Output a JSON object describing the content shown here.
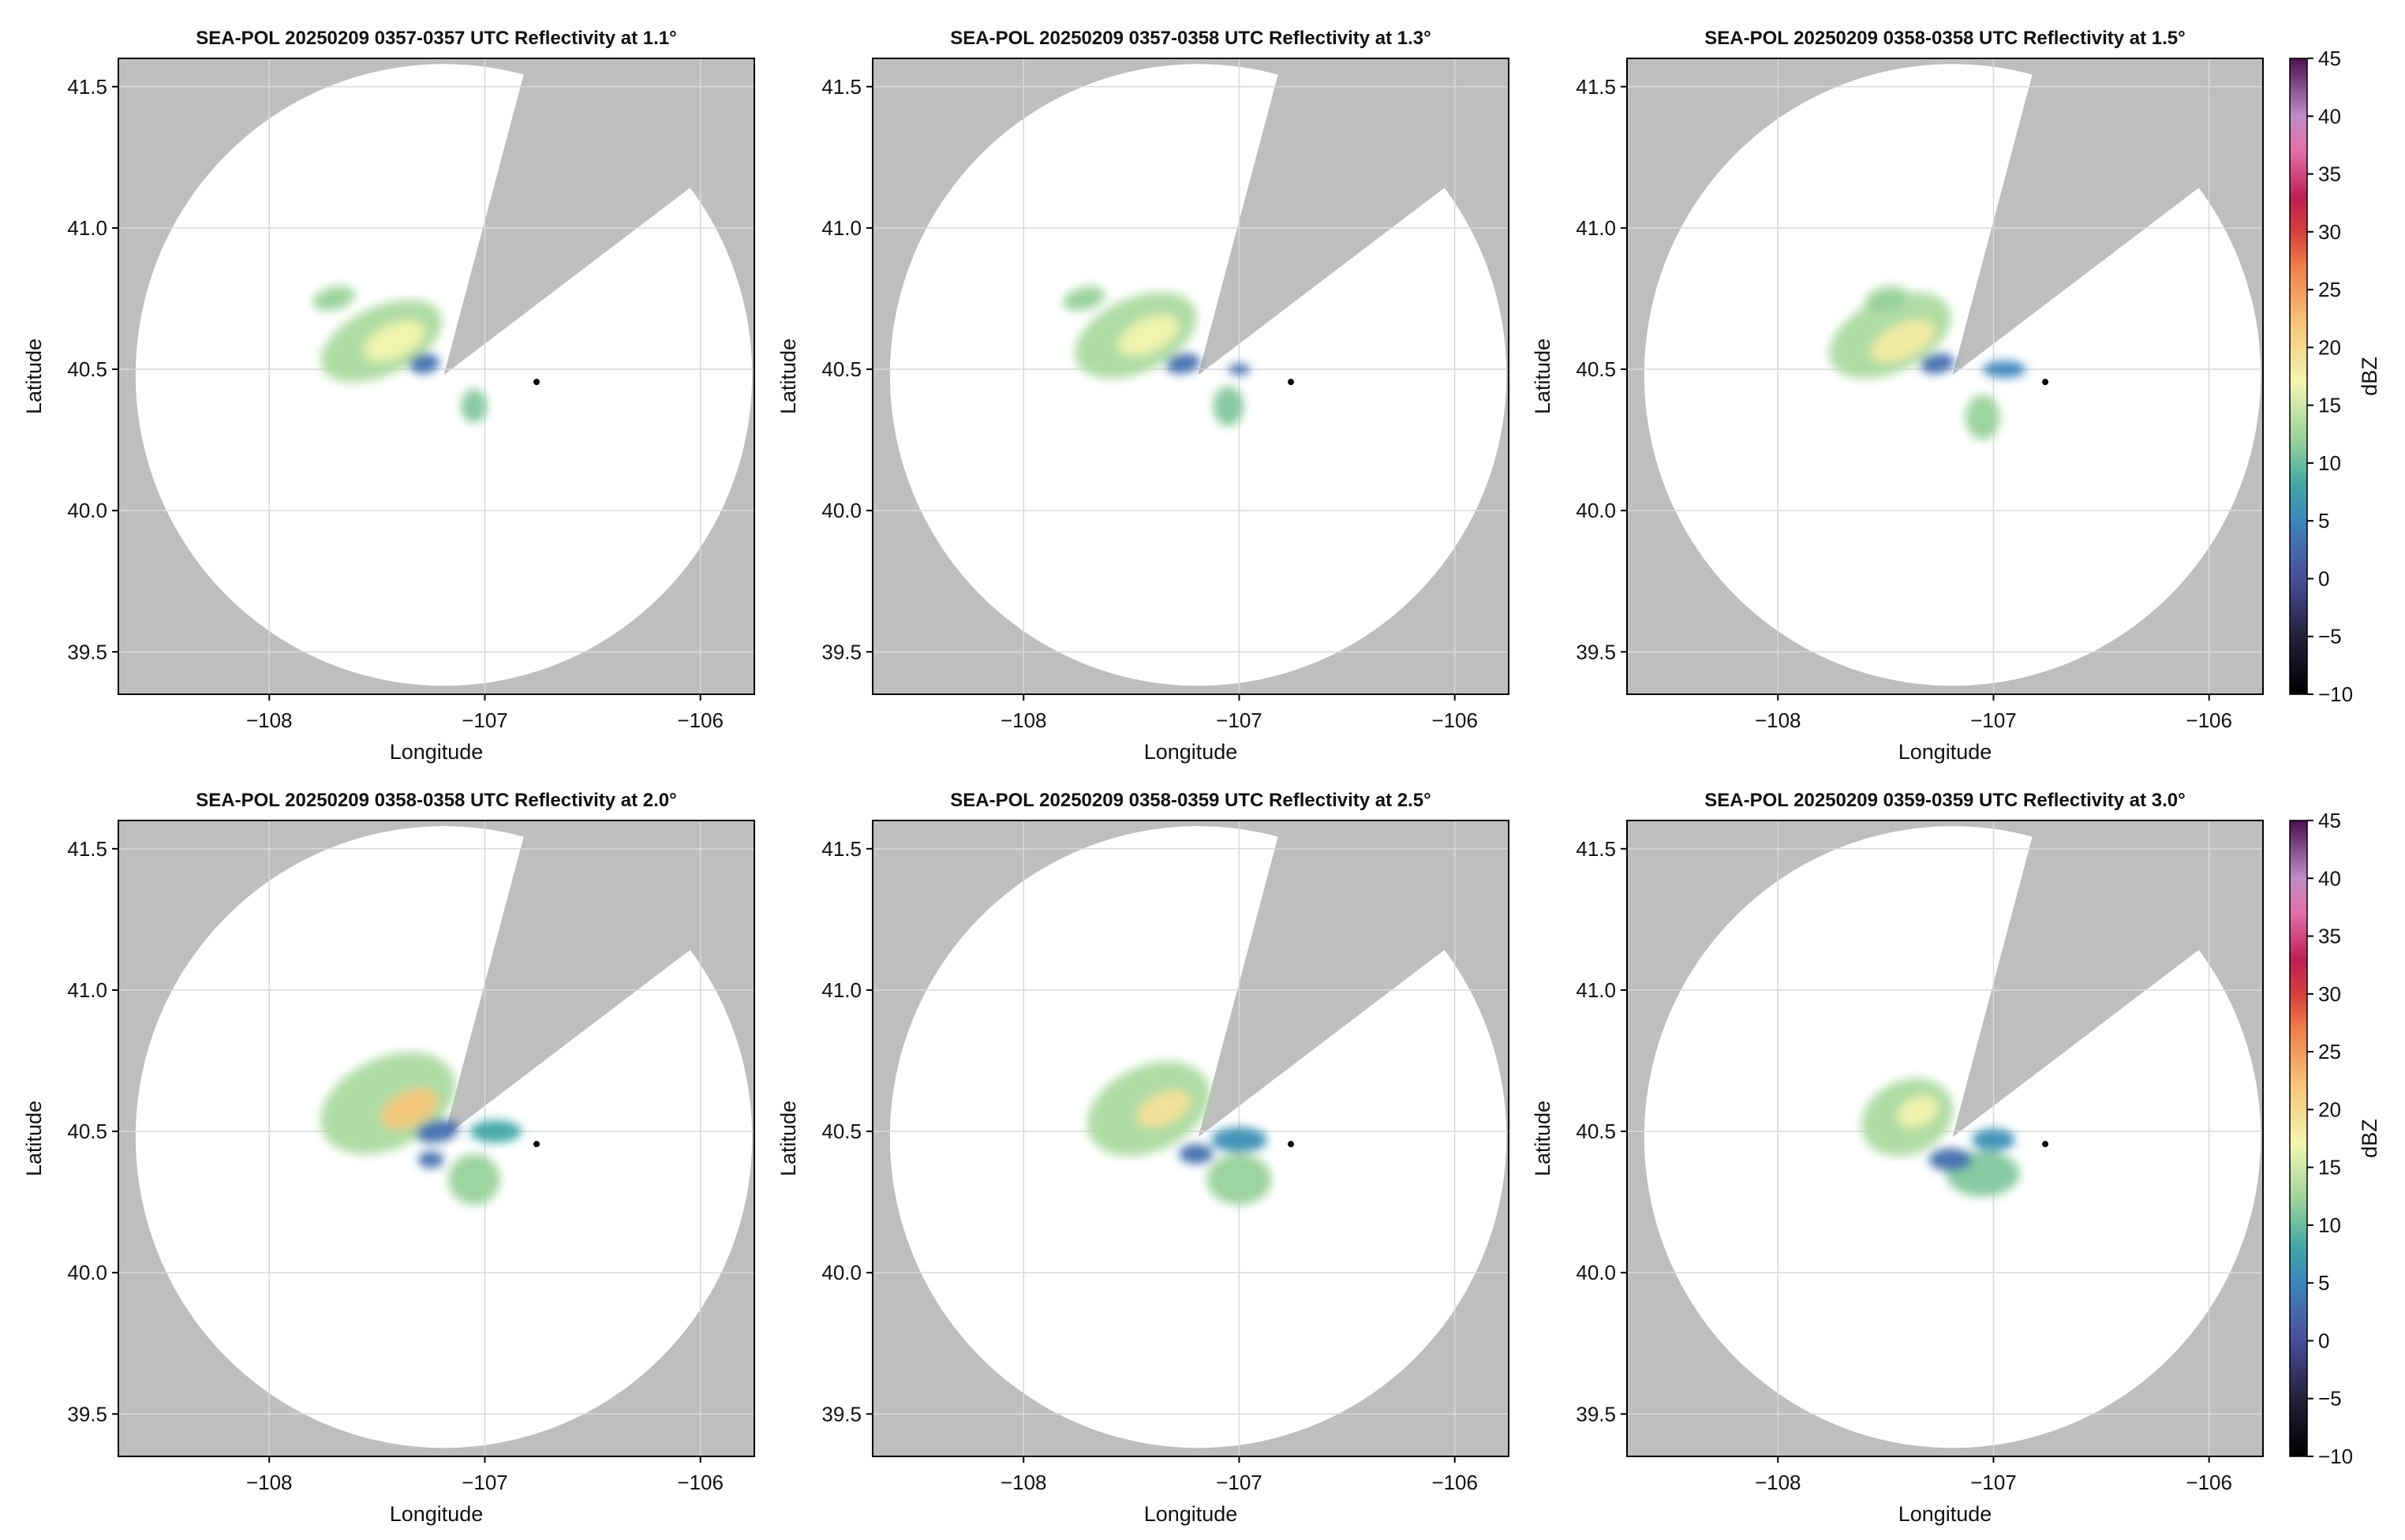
{
  "chart_data": {
    "type": "heatmap",
    "layout": {
      "rows": 2,
      "cols": 3
    },
    "colors": {
      "no_coverage": "#bebebe",
      "in_range_background": "#ffffff",
      "grid": "#d9d9d9",
      "radar_site_marker": "#000000"
    },
    "xlabel": "Longitude",
    "ylabel": "Latitude",
    "xlim": [
      -108.7,
      -105.75
    ],
    "ylim": [
      39.35,
      41.6
    ],
    "xticks": [
      -108,
      -107,
      -106
    ],
    "xtick_labels": [
      "−108",
      "−107",
      "−106"
    ],
    "yticks": [
      39.5,
      40.0,
      40.5,
      41.0,
      41.5
    ],
    "ytick_labels": [
      "39.5",
      "40.0",
      "40.5",
      "41.0",
      "41.5"
    ],
    "radar_site": {
      "lon": -107.19,
      "lat": 40.48
    },
    "marker_point": {
      "lon": -106.76,
      "lat": 40.455
    },
    "coverage": {
      "radius_deg_lon": 1.43,
      "radius_deg_lat": 1.1,
      "blocked_sector_deg": [
        15,
        53
      ]
    },
    "colorbar": {
      "label": "dBZ",
      "min": -10,
      "max": 45,
      "ticks": [
        -10,
        -5,
        0,
        5,
        10,
        15,
        20,
        25,
        30,
        35,
        40,
        45
      ],
      "tick_labels": [
        "−10",
        "−5",
        "0",
        "5",
        "10",
        "15",
        "20",
        "25",
        "30",
        "35",
        "40",
        "45"
      ],
      "stops": [
        {
          "v": -10,
          "color": "#000000"
        },
        {
          "v": -5,
          "color": "#24203a"
        },
        {
          "v": 0,
          "color": "#4a4e9a"
        },
        {
          "v": 5,
          "color": "#3d84bc"
        },
        {
          "v": 8,
          "color": "#3ea6a6"
        },
        {
          "v": 12,
          "color": "#98d29a"
        },
        {
          "v": 17,
          "color": "#f3f5b0"
        },
        {
          "v": 22,
          "color": "#f7c67a"
        },
        {
          "v": 27,
          "color": "#ef7d4a"
        },
        {
          "v": 30,
          "color": "#d53e3a"
        },
        {
          "v": 33,
          "color": "#be1f56"
        },
        {
          "v": 37,
          "color": "#e46fa8"
        },
        {
          "v": 40,
          "color": "#c08cc6"
        },
        {
          "v": 45,
          "color": "#4a1250"
        }
      ]
    },
    "panels": [
      {
        "title": "SEA-POL 20250209 0357-0357 UTC Reflectivity at 1.1°",
        "elevation_deg": 1.1,
        "echoes": [
          {
            "lon": -107.48,
            "lat": 40.6,
            "rx": 0.3,
            "ry": 0.12,
            "rot": -25,
            "dbz": 13
          },
          {
            "lon": -107.42,
            "lat": 40.6,
            "rx": 0.15,
            "ry": 0.06,
            "rot": -25,
            "dbz": 17
          },
          {
            "lon": -107.7,
            "lat": 40.75,
            "rx": 0.1,
            "ry": 0.04,
            "rot": -15,
            "dbz": 12
          },
          {
            "lon": -107.28,
            "lat": 40.52,
            "rx": 0.07,
            "ry": 0.035,
            "rot": -10,
            "dbz": 3
          },
          {
            "lon": -107.05,
            "lat": 40.37,
            "rx": 0.06,
            "ry": 0.06,
            "rot": 0,
            "dbz": 11
          }
        ]
      },
      {
        "title": "SEA-POL 20250209 0357-0358 UTC Reflectivity at 1.3°",
        "elevation_deg": 1.3,
        "echoes": [
          {
            "lon": -107.48,
            "lat": 40.62,
            "rx": 0.3,
            "ry": 0.13,
            "rot": -25,
            "dbz": 13
          },
          {
            "lon": -107.42,
            "lat": 40.62,
            "rx": 0.15,
            "ry": 0.06,
            "rot": -25,
            "dbz": 17
          },
          {
            "lon": -107.72,
            "lat": 40.75,
            "rx": 0.1,
            "ry": 0.04,
            "rot": -15,
            "dbz": 12
          },
          {
            "lon": -107.26,
            "lat": 40.52,
            "rx": 0.08,
            "ry": 0.035,
            "rot": -10,
            "dbz": 3
          },
          {
            "lon": -107.05,
            "lat": 40.37,
            "rx": 0.07,
            "ry": 0.07,
            "rot": 0,
            "dbz": 11
          },
          {
            "lon": -107.0,
            "lat": 40.5,
            "rx": 0.05,
            "ry": 0.02,
            "rot": 0,
            "dbz": 3
          }
        ]
      },
      {
        "title": "SEA-POL 20250209 0358-0358 UTC Reflectivity at 1.5°",
        "elevation_deg": 1.5,
        "echoes": [
          {
            "lon": -107.48,
            "lat": 40.62,
            "rx": 0.3,
            "ry": 0.13,
            "rot": -25,
            "dbz": 13
          },
          {
            "lon": -107.42,
            "lat": 40.6,
            "rx": 0.16,
            "ry": 0.06,
            "rot": -25,
            "dbz": 18
          },
          {
            "lon": -107.5,
            "lat": 40.75,
            "rx": 0.1,
            "ry": 0.04,
            "rot": -15,
            "dbz": 12
          },
          {
            "lon": -107.26,
            "lat": 40.52,
            "rx": 0.08,
            "ry": 0.035,
            "rot": -10,
            "dbz": 3
          },
          {
            "lon": -107.05,
            "lat": 40.33,
            "rx": 0.08,
            "ry": 0.08,
            "rot": 0,
            "dbz": 12
          },
          {
            "lon": -106.95,
            "lat": 40.5,
            "rx": 0.1,
            "ry": 0.03,
            "rot": 0,
            "dbz": 5
          }
        ]
      },
      {
        "title": "SEA-POL 20250209 0358-0358 UTC Reflectivity at 2.0°",
        "elevation_deg": 2.0,
        "echoes": [
          {
            "lon": -107.45,
            "lat": 40.6,
            "rx": 0.33,
            "ry": 0.16,
            "rot": -25,
            "dbz": 13
          },
          {
            "lon": -107.35,
            "lat": 40.58,
            "rx": 0.14,
            "ry": 0.06,
            "rot": -25,
            "dbz": 22
          },
          {
            "lon": -107.22,
            "lat": 40.5,
            "rx": 0.1,
            "ry": 0.04,
            "rot": -10,
            "dbz": 3
          },
          {
            "lon": -107.05,
            "lat": 40.33,
            "rx": 0.12,
            "ry": 0.09,
            "rot": 0,
            "dbz": 12
          },
          {
            "lon": -106.95,
            "lat": 40.5,
            "rx": 0.12,
            "ry": 0.04,
            "rot": 0,
            "dbz": 8
          },
          {
            "lon": -107.25,
            "lat": 40.4,
            "rx": 0.06,
            "ry": 0.03,
            "rot": 0,
            "dbz": 3
          }
        ]
      },
      {
        "title": "SEA-POL 20250209 0358-0359 UTC Reflectivity at 2.5°",
        "elevation_deg": 2.5,
        "echoes": [
          {
            "lon": -107.42,
            "lat": 40.58,
            "rx": 0.3,
            "ry": 0.15,
            "rot": -25,
            "dbz": 13
          },
          {
            "lon": -107.35,
            "lat": 40.58,
            "rx": 0.13,
            "ry": 0.055,
            "rot": -25,
            "dbz": 19
          },
          {
            "lon": -107.0,
            "lat": 40.33,
            "rx": 0.15,
            "ry": 0.09,
            "rot": 0,
            "dbz": 12
          },
          {
            "lon": -107.0,
            "lat": 40.47,
            "rx": 0.13,
            "ry": 0.045,
            "rot": 0,
            "dbz": 6
          },
          {
            "lon": -107.2,
            "lat": 40.42,
            "rx": 0.08,
            "ry": 0.035,
            "rot": 0,
            "dbz": 3
          }
        ]
      },
      {
        "title": "SEA-POL 20250209 0359-0359 UTC Reflectivity at 3.0°",
        "elevation_deg": 3.0,
        "echoes": [
          {
            "lon": -107.4,
            "lat": 40.55,
            "rx": 0.22,
            "ry": 0.13,
            "rot": -25,
            "dbz": 13
          },
          {
            "lon": -107.35,
            "lat": 40.57,
            "rx": 0.1,
            "ry": 0.05,
            "rot": -25,
            "dbz": 17
          },
          {
            "lon": -107.05,
            "lat": 40.35,
            "rx": 0.17,
            "ry": 0.08,
            "rot": 0,
            "dbz": 11
          },
          {
            "lon": -107.2,
            "lat": 40.4,
            "rx": 0.1,
            "ry": 0.04,
            "rot": 0,
            "dbz": 3
          },
          {
            "lon": -107.0,
            "lat": 40.47,
            "rx": 0.1,
            "ry": 0.04,
            "rot": 0,
            "dbz": 6
          }
        ]
      }
    ]
  }
}
